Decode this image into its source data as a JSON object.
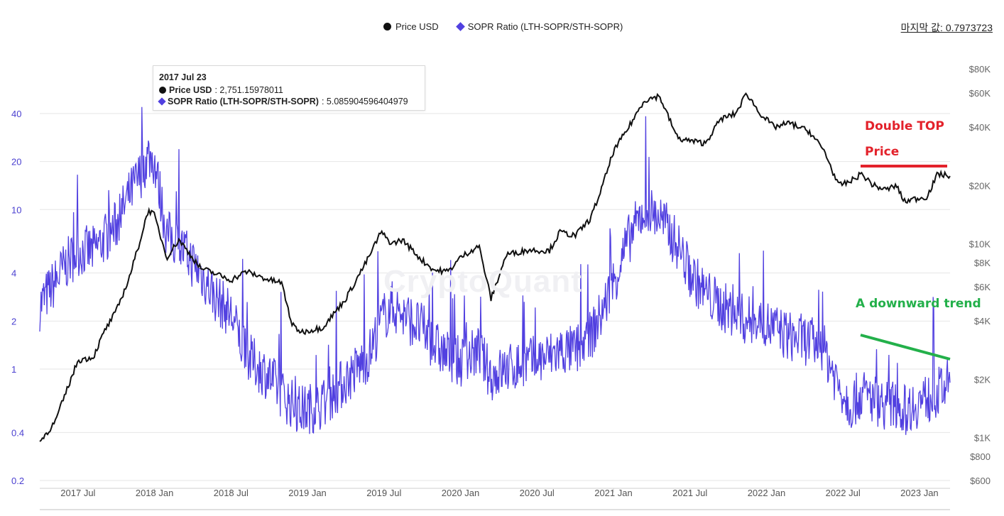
{
  "legend": {
    "price_label": "Price USD",
    "sopr_label": "SOPR Ratio (LTH-SOPR/STH-SOPR)"
  },
  "last_value": "마지막 값: 0.7973723",
  "tooltip": {
    "date": "2017 Jul 23",
    "price_label": "Price USD",
    "price_value": ": 2,751.15978011",
    "sopr_label": "SOPR Ratio (LTH-SOPR/STH-SOPR)",
    "sopr_value": ": 5.085904596404979"
  },
  "watermark": "CryptoQuant",
  "annotations": {
    "double_top": "Double TOP",
    "price": "Price",
    "downward": "A downward trend"
  },
  "colors": {
    "price": "#111111",
    "sopr": "#5140e0",
    "red": "#e3222b",
    "green": "#23b04a",
    "grid": "#e6e6e6",
    "left_axis": "#4a3fd0",
    "right_axis": "#666666"
  },
  "chart_data": {
    "type": "line",
    "scale": "log",
    "x_ticks": [
      "2017 Jul",
      "2018 Jan",
      "2018 Jul",
      "2019 Jan",
      "2019 Jul",
      "2020 Jan",
      "2020 Jul",
      "2021 Jan",
      "2021 Jul",
      "2022 Jan",
      "2022 Jul",
      "2023 Jan"
    ],
    "left_axis_ticks": [
      40,
      20,
      10,
      4,
      2,
      1,
      0.4,
      0.2
    ],
    "left_axis_labels": [
      "40",
      "20",
      "10",
      "4",
      "2",
      "1",
      "0.4",
      "0.2"
    ],
    "right_axis_ticks": [
      80000,
      60000,
      40000,
      20000,
      10000,
      8000,
      6000,
      4000,
      2000,
      1000,
      800,
      600
    ],
    "right_axis_labels": [
      "$80K",
      "$60K",
      "$40K",
      "$20K",
      "$10K",
      "$8K",
      "$6K",
      "$4K",
      "$2K",
      "$1K",
      "$800",
      "$600"
    ],
    "series": [
      {
        "name": "Price USD",
        "axis": "right",
        "t": [
          2017.25,
          2017.35,
          2017.42,
          2017.5,
          2017.6,
          2017.67,
          2017.75,
          2017.83,
          2017.9,
          2017.96,
          2018.0,
          2018.08,
          2018.16,
          2018.3,
          2018.4,
          2018.5,
          2018.6,
          2018.75,
          2018.83,
          2018.9,
          2018.96,
          2019.1,
          2019.25,
          2019.4,
          2019.48,
          2019.55,
          2019.62,
          2019.75,
          2019.83,
          2019.92,
          2020.0,
          2020.12,
          2020.2,
          2020.3,
          2020.45,
          2020.58,
          2020.65,
          2020.75,
          2020.85,
          2020.92,
          2021.0,
          2021.1,
          2021.2,
          2021.3,
          2021.42,
          2021.5,
          2021.6,
          2021.7,
          2021.8,
          2021.87,
          2021.95,
          2022.05,
          2022.15,
          2022.28,
          2022.38,
          2022.47,
          2022.55,
          2022.62,
          2022.7,
          2022.78,
          2022.85,
          2022.9,
          2022.96,
          2023.05,
          2023.12,
          2023.18
        ],
        "values": [
          950,
          1200,
          1700,
          2500,
          2600,
          3500,
          4500,
          6500,
          10000,
          15000,
          14000,
          8500,
          10500,
          7500,
          7000,
          6500,
          7200,
          6500,
          6300,
          3800,
          3500,
          3700,
          5200,
          8500,
          11500,
          10000,
          10500,
          8200,
          7300,
          7200,
          8500,
          9800,
          5200,
          8800,
          9300,
          9200,
          11500,
          11000,
          13500,
          19000,
          30000,
          40000,
          55000,
          58000,
          35000,
          34000,
          33000,
          44000,
          47000,
          60000,
          48000,
          40000,
          42000,
          38000,
          30000,
          20000,
          21000,
          23000,
          20000,
          19000,
          20000,
          16500,
          17000,
          17500,
          23000,
          22500
        ]
      },
      {
        "name": "SOPR Ratio (LTH-SOPR/STH-SOPR)",
        "axis": "left",
        "t": [
          2017.25,
          2017.35,
          2017.42,
          2017.5,
          2017.6,
          2017.67,
          2017.75,
          2017.83,
          2017.9,
          2017.96,
          2018.0,
          2018.08,
          2018.16,
          2018.3,
          2018.4,
          2018.5,
          2018.6,
          2018.75,
          2018.83,
          2018.9,
          2018.96,
          2019.1,
          2019.25,
          2019.4,
          2019.48,
          2019.55,
          2019.62,
          2019.75,
          2019.83,
          2019.92,
          2020.0,
          2020.12,
          2020.2,
          2020.3,
          2020.45,
          2020.58,
          2020.65,
          2020.75,
          2020.85,
          2020.92,
          2021.0,
          2021.1,
          2021.2,
          2021.3,
          2021.42,
          2021.5,
          2021.6,
          2021.7,
          2021.8,
          2021.87,
          2021.95,
          2022.05,
          2022.15,
          2022.28,
          2022.38,
          2022.47,
          2022.55,
          2022.62,
          2022.7,
          2022.78,
          2022.85,
          2022.9,
          2022.96,
          2023.05,
          2023.12,
          2023.18
        ],
        "values": [
          2.5,
          3.5,
          4.5,
          5.5,
          5.5,
          6.5,
          8,
          12,
          16,
          22,
          20,
          7,
          6,
          4,
          2.8,
          2.2,
          1.2,
          0.9,
          0.7,
          0.6,
          0.55,
          0.6,
          0.85,
          1.2,
          2.0,
          2.5,
          2.2,
          1.8,
          1.4,
          1.2,
          1.1,
          1.3,
          0.9,
          1.0,
          1.1,
          1.2,
          1.3,
          1.3,
          1.6,
          2.2,
          3.5,
          6.5,
          10,
          9,
          6,
          4,
          3,
          2.5,
          2.2,
          2.0,
          2.0,
          1.8,
          1.6,
          1.5,
          1.3,
          0.8,
          0.6,
          0.7,
          0.65,
          0.6,
          0.6,
          0.55,
          0.6,
          0.65,
          0.7,
          0.8
        ]
      }
    ]
  }
}
